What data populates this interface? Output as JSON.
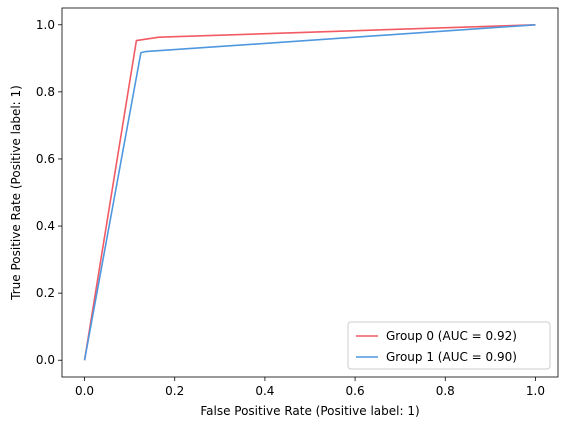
{
  "chart_data": {
    "type": "line",
    "title": "",
    "xlabel": "False Positive Rate (Positive label: 1)",
    "ylabel": "True Positive Rate (Positive label: 1)",
    "xlim": [
      -0.05,
      1.05
    ],
    "ylim": [
      -0.05,
      1.05
    ],
    "xticks": [
      "0.0",
      "0.2",
      "0.4",
      "0.6",
      "0.8",
      "1.0"
    ],
    "yticks": [
      "0.0",
      "0.2",
      "0.4",
      "0.6",
      "0.8",
      "1.0"
    ],
    "grid": false,
    "legend_position": "lower-right",
    "series": [
      {
        "name": "Group 0 (AUC = 0.92)",
        "color": "#f25a64",
        "x": [
          0.0,
          0.115,
          0.165,
          1.0
        ],
        "y": [
          0.0,
          0.953,
          0.963,
          1.0
        ]
      },
      {
        "name": "Group 1 (AUC = 0.90)",
        "color": "#4f98e0",
        "x": [
          0.0,
          0.125,
          0.135,
          1.0
        ],
        "y": [
          0.0,
          0.917,
          0.92,
          1.0
        ]
      }
    ]
  }
}
